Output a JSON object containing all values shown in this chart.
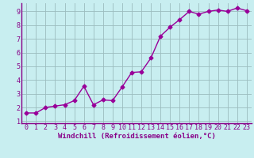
{
  "x": [
    0,
    1,
    2,
    3,
    4,
    5,
    6,
    7,
    8,
    9,
    10,
    11,
    12,
    13,
    14,
    15,
    16,
    17,
    18,
    19,
    20,
    21,
    22,
    23
  ],
  "y": [
    1.6,
    1.6,
    2.0,
    2.1,
    2.2,
    2.5,
    3.55,
    2.2,
    2.55,
    2.5,
    3.5,
    4.55,
    4.6,
    5.6,
    7.2,
    7.85,
    8.4,
    9.0,
    8.8,
    9.0,
    9.1,
    9.0,
    9.25,
    9.05
  ],
  "line_color": "#990099",
  "marker": "D",
  "marker_size": 2.5,
  "background_color": "#c8eef0",
  "grid_color": "#9bbcbe",
  "xlabel": "Windchill (Refroidissement éolien,°C)",
  "xlim": [
    -0.5,
    23.5
  ],
  "ylim": [
    0.85,
    9.6
  ],
  "yticks": [
    1,
    2,
    3,
    4,
    5,
    6,
    7,
    8,
    9
  ],
  "xticks": [
    0,
    1,
    2,
    3,
    4,
    5,
    6,
    7,
    8,
    9,
    10,
    11,
    12,
    13,
    14,
    15,
    16,
    17,
    18,
    19,
    20,
    21,
    22,
    23
  ],
  "tick_label_color": "#880088",
  "xlabel_color": "#880088",
  "xlabel_fontsize": 6.5,
  "tick_fontsize": 6.0,
  "spine_color": "#880088",
  "line_width": 1.0
}
